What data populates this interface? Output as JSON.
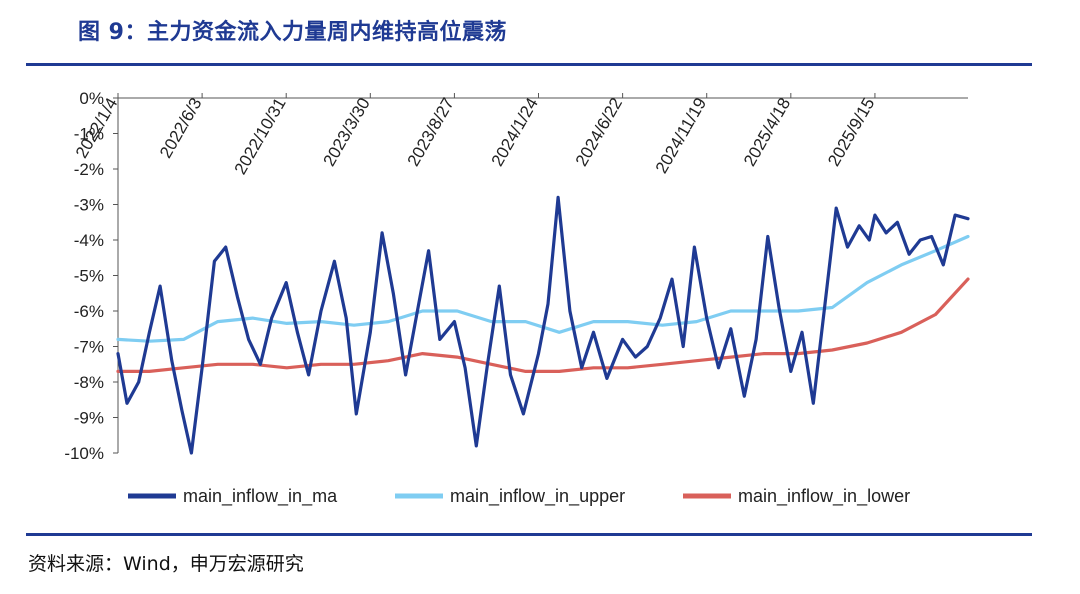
{
  "header": {
    "title": "图 9：主力资金流入力量周内维持高位震荡"
  },
  "footer": {
    "source": "资料来源：Wind，申万宏源研究"
  },
  "colors": {
    "title": "#1f3a93",
    "ma": "#1f3a93",
    "upper": "#7fcdf2",
    "lower": "#d9605a",
    "axis": "#555555"
  },
  "chart_data": {
    "type": "line",
    "title": "",
    "xlabel": "",
    "ylabel": "",
    "ylim": [
      -10,
      0
    ],
    "yticks": [
      0,
      -1,
      -2,
      -3,
      -4,
      -5,
      -6,
      -7,
      -8,
      -9,
      -10
    ],
    "ytick_labels": [
      "0%",
      "-1%",
      "-2%",
      "-3%",
      "-4%",
      "-5%",
      "-6%",
      "-7%",
      "-8%",
      "-9%",
      "-10%"
    ],
    "x_range": [
      "2022/1/4",
      "2026/2/28"
    ],
    "xtick_dates": [
      "2022/1/4",
      "2022/6/3",
      "2022/10/31",
      "2023/3/30",
      "2023/8/27",
      "2024/1/24",
      "2024/6/22",
      "2024/11/19",
      "2025/4/18",
      "2025/9/15"
    ],
    "legend_position": "bottom",
    "series": [
      {
        "name": "main_inflow_in_ma",
        "x": [
          "2022/1/4",
          "2022/1/20",
          "2022/2/10",
          "2022/3/1",
          "2022/3/20",
          "2022/4/10",
          "2022/4/28",
          "2022/5/15",
          "2022/6/3",
          "2022/6/25",
          "2022/7/15",
          "2022/8/5",
          "2022/8/25",
          "2022/9/15",
          "2022/10/5",
          "2022/10/31",
          "2022/11/20",
          "2022/12/10",
          "2023/1/1",
          "2023/1/25",
          "2023/2/15",
          "2023/3/5",
          "2023/3/30",
          "2023/4/20",
          "2023/5/10",
          "2023/6/1",
          "2023/6/22",
          "2023/7/12",
          "2023/8/1",
          "2023/8/27",
          "2023/9/15",
          "2023/10/5",
          "2023/10/25",
          "2023/11/15",
          "2023/12/5",
          "2023/12/28",
          "2024/1/24",
          "2024/2/10",
          "2024/2/28",
          "2024/3/20",
          "2024/4/10",
          "2024/5/1",
          "2024/5/25",
          "2024/6/22",
          "2024/7/15",
          "2024/8/5",
          "2024/8/28",
          "2024/9/18",
          "2024/10/8",
          "2024/10/28",
          "2024/11/19",
          "2024/12/10",
          "2025/1/1",
          "2025/1/25",
          "2025/2/15",
          "2025/3/8",
          "2025/3/28",
          "2025/4/18",
          "2025/5/8",
          "2025/5/28",
          "2025/6/18",
          "2025/7/8",
          "2025/7/28",
          "2025/8/18",
          "2025/9/5",
          "2025/9/15",
          "2025/10/5",
          "2025/10/25",
          "2025/11/15",
          "2025/12/5",
          "2025/12/25",
          "2026/1/15",
          "2026/2/5",
          "2026/2/28"
        ],
        "y": [
          -7.2,
          -8.6,
          -8.0,
          -6.6,
          -5.3,
          -7.4,
          -8.8,
          -10.0,
          -7.6,
          -4.6,
          -4.2,
          -5.6,
          -6.8,
          -7.5,
          -6.2,
          -5.2,
          -6.6,
          -7.8,
          -6.0,
          -4.6,
          -6.2,
          -8.9,
          -6.6,
          -3.8,
          -5.5,
          -7.8,
          -6.0,
          -4.3,
          -6.8,
          -6.3,
          -7.6,
          -9.8,
          -7.5,
          -5.3,
          -7.8,
          -8.9,
          -7.2,
          -5.8,
          -2.8,
          -6.0,
          -7.6,
          -6.6,
          -7.9,
          -6.8,
          -7.3,
          -7.0,
          -6.2,
          -5.1,
          -7.0,
          -4.2,
          -6.2,
          -7.6,
          -6.5,
          -8.4,
          -6.8,
          -3.9,
          -5.9,
          -7.7,
          -6.6,
          -8.6,
          -5.8,
          -3.1,
          -4.2,
          -3.6,
          -4.0,
          -3.3,
          -3.8,
          -3.5,
          -4.4,
          -4.0,
          -3.9,
          -4.7,
          -3.3,
          -3.4
        ]
      },
      {
        "name": "main_inflow_in_upper",
        "x": [
          "2022/1/4",
          "2022/3/1",
          "2022/5/1",
          "2022/7/1",
          "2022/9/1",
          "2022/11/1",
          "2023/1/1",
          "2023/3/1",
          "2023/5/1",
          "2023/7/1",
          "2023/9/1",
          "2023/11/1",
          "2024/1/1",
          "2024/3/1",
          "2024/5/1",
          "2024/7/1",
          "2024/9/1",
          "2024/11/1",
          "2025/1/1",
          "2025/3/1",
          "2025/5/1",
          "2025/7/1",
          "2025/9/1",
          "2025/11/1",
          "2026/1/1",
          "2026/2/28"
        ],
        "y": [
          -6.8,
          -6.85,
          -6.8,
          -6.3,
          -6.2,
          -6.35,
          -6.3,
          -6.4,
          -6.3,
          -6.0,
          -6.0,
          -6.3,
          -6.3,
          -6.6,
          -6.3,
          -6.3,
          -6.4,
          -6.3,
          -6.0,
          -6.0,
          -6.0,
          -5.9,
          -5.2,
          -4.7,
          -4.3,
          -3.9
        ]
      },
      {
        "name": "main_inflow_in_lower",
        "x": [
          "2022/1/4",
          "2022/3/1",
          "2022/5/1",
          "2022/7/1",
          "2022/9/1",
          "2022/11/1",
          "2023/1/1",
          "2023/3/1",
          "2023/5/1",
          "2023/7/1",
          "2023/9/1",
          "2023/11/1",
          "2024/1/1",
          "2024/3/1",
          "2024/5/1",
          "2024/7/1",
          "2024/9/1",
          "2024/11/1",
          "2025/1/1",
          "2025/3/1",
          "2025/5/1",
          "2025/7/1",
          "2025/9/1",
          "2025/11/1",
          "2026/1/1",
          "2026/2/28"
        ],
        "y": [
          -7.7,
          -7.7,
          -7.6,
          -7.5,
          -7.5,
          -7.6,
          -7.5,
          -7.5,
          -7.4,
          -7.2,
          -7.3,
          -7.5,
          -7.7,
          -7.7,
          -7.6,
          -7.6,
          -7.5,
          -7.4,
          -7.3,
          -7.2,
          -7.2,
          -7.1,
          -6.9,
          -6.6,
          -6.1,
          -5.1
        ]
      }
    ]
  }
}
